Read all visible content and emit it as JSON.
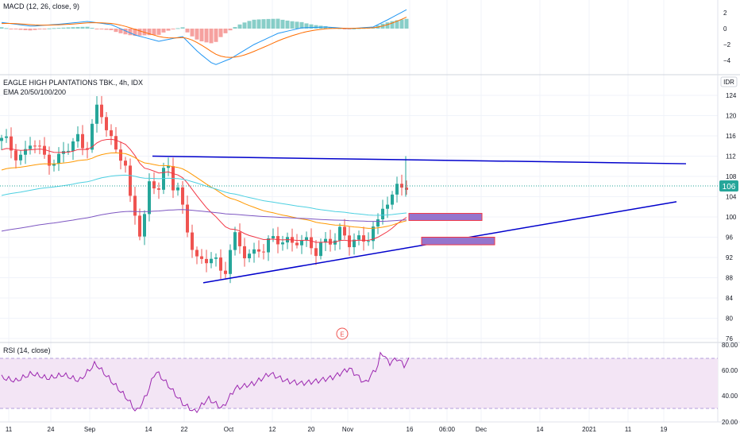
{
  "colors": {
    "up": "#26a69a",
    "down": "#ef5350",
    "grid": "#f0f3fa",
    "axis_text": "#131722",
    "ema20": "#f23645",
    "ema50": "#ff9800",
    "ema100": "#4dd0e1",
    "ema200": "#7e57c2",
    "macd_line": "#2196f3",
    "signal_line": "#ff6d00",
    "trendline": "#0000cc",
    "box_fill": "#9575cd",
    "box_border": "#f23645",
    "rsi_line": "#9c27b0",
    "rsi_band": "#f3e5f5",
    "price_badge": "#26a69a"
  },
  "macd": {
    "label": "MACD (12, 26, close, 9)",
    "axis_ticks": [
      "2",
      "0",
      "−2",
      "−4"
    ]
  },
  "main": {
    "title": "EAGLE HIGH PLANTATIONS TBK., 4h, IDX",
    "indicator_label": "EMA 20/50/100/200",
    "currency": "IDR",
    "current_price": "106",
    "earnings_marker": "E",
    "y_ticks": [
      "124",
      "120",
      "116",
      "112",
      "108",
      "104",
      "100",
      "96",
      "92",
      "88",
      "84",
      "80",
      "76"
    ]
  },
  "rsi": {
    "label": "RSI (14, close)",
    "axis_ticks": [
      "80.00",
      "60.00",
      "40.00",
      "20.00"
    ]
  },
  "x_axis": {
    "labels": [
      "11",
      "24",
      "Sep",
      "14",
      "22",
      "Oct",
      "12",
      "20",
      "Nov",
      "16",
      "06:00",
      "Dec",
      "14",
      "2021",
      "11",
      "19"
    ]
  },
  "chart_data": [
    {
      "type": "candlestick",
      "title": "EAGLE HIGH PLANTATIONS TBK., 4h, IDX",
      "ylim": [
        74,
        126
      ],
      "x_labels": [
        "11",
        "24",
        "Sep",
        "14",
        "22",
        "Oct",
        "12",
        "20",
        "Nov",
        "16",
        "06:00",
        "Dec",
        "14",
        "2021",
        "11",
        "19"
      ],
      "key_prices": {
        "high": 125,
        "low": 87,
        "last": 106
      },
      "series": [
        {
          "name": "EMA 20"
        },
        {
          "name": "EMA 50"
        },
        {
          "name": "EMA 100"
        },
        {
          "name": "EMA 200"
        }
      ],
      "annotations": {
        "upper_trendline": [
          112,
          110.5
        ],
        "lower_trendline": [
          87,
          103
        ],
        "supply_zones": [
          [
            99.3,
            100.7
          ],
          [
            94.5,
            96
          ]
        ]
      }
    },
    {
      "type": "bar",
      "title": "MACD (12, 26, close, 9)",
      "ylim": [
        -5,
        3
      ],
      "series": [
        {
          "name": "MACD"
        },
        {
          "name": "Signal"
        },
        {
          "name": "Histogram"
        }
      ]
    },
    {
      "type": "line",
      "title": "RSI (14, close)",
      "ylim": [
        20,
        80
      ],
      "band": [
        30,
        70
      ],
      "last_value": 70
    }
  ]
}
